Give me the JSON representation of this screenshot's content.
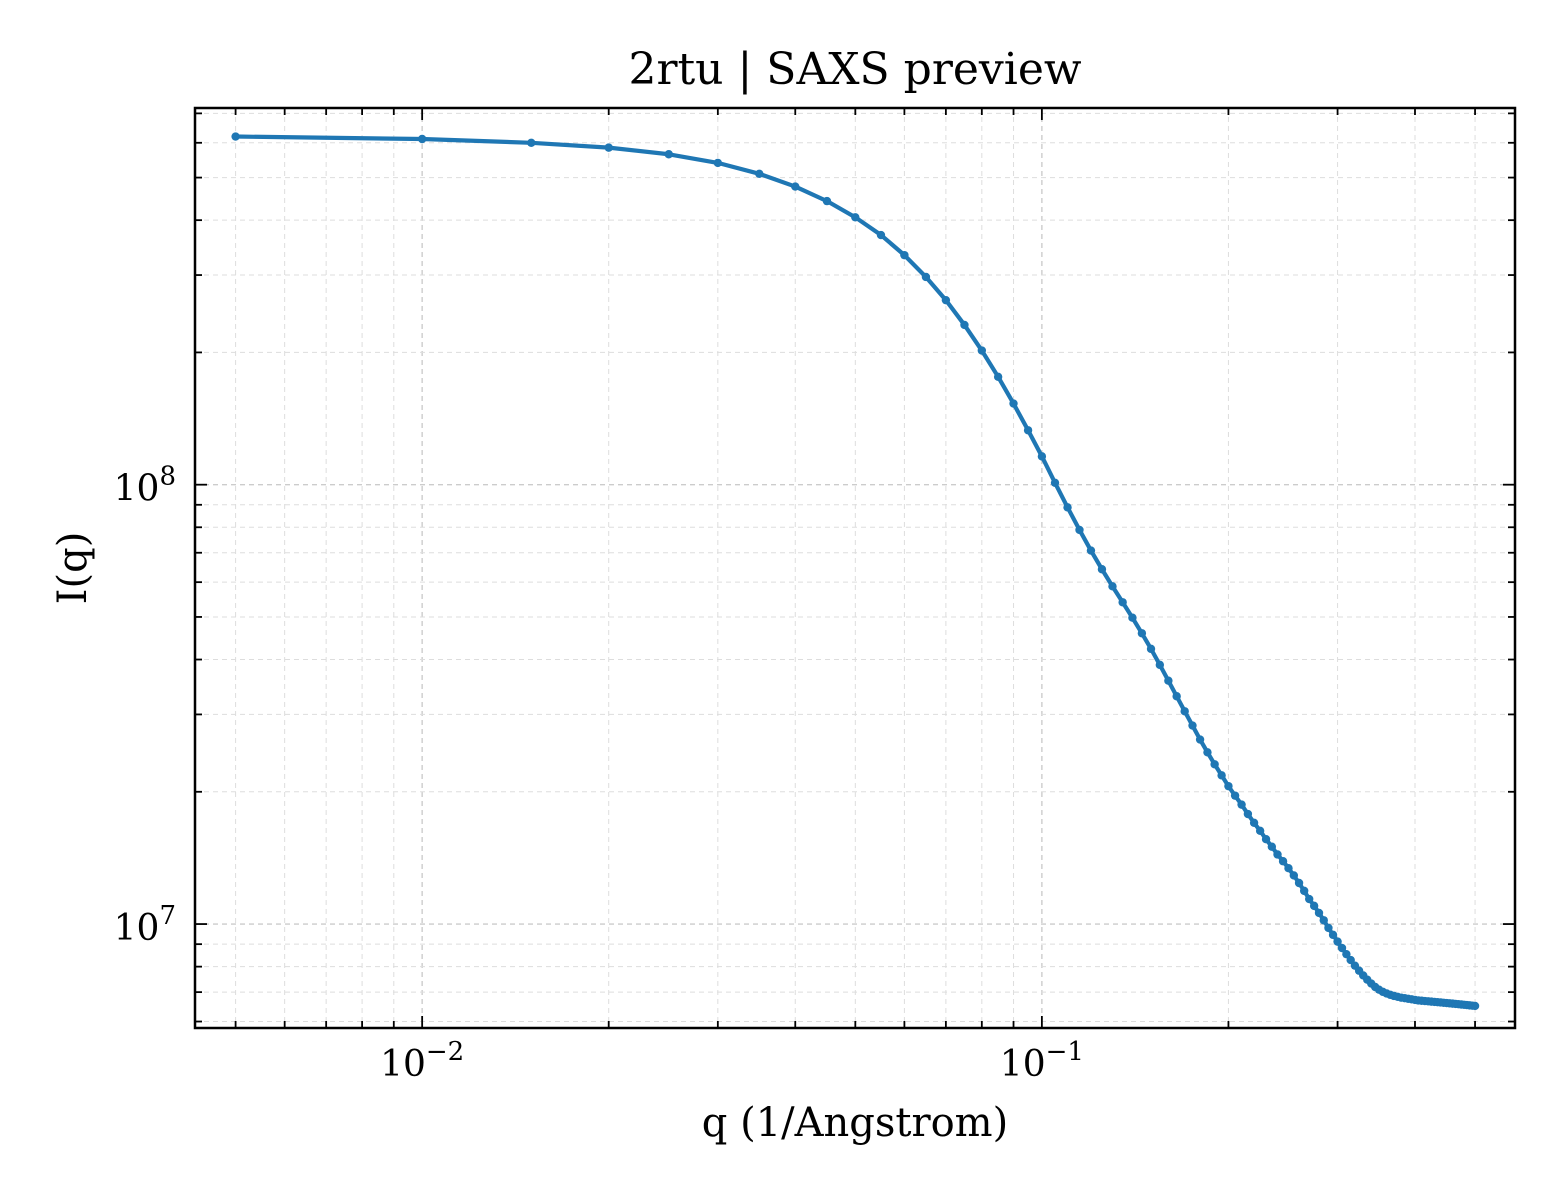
{
  "chart_data": {
    "type": "line",
    "title": "2rtu | SAXS preview",
    "xlabel": "q (1/Angstrom)",
    "ylabel": "I(q)",
    "xscale": "log",
    "yscale": "log",
    "xlim": [
      0.0043,
      0.58
    ],
    "ylim": [
      5800000,
      720000000
    ],
    "x_ticks": [
      {
        "value": 0.01,
        "base": "10",
        "exp": "−2"
      },
      {
        "value": 0.1,
        "base": "10",
        "exp": "−1"
      }
    ],
    "y_ticks": [
      {
        "value": 10000000,
        "base": "10",
        "exp": "7"
      },
      {
        "value": 100000000,
        "base": "10",
        "exp": "8"
      }
    ],
    "grid": true,
    "line_color": "#1f77b4",
    "series": [
      {
        "marker": "dot",
        "x": [
          0.005,
          0.01,
          0.015,
          0.02,
          0.025,
          0.03,
          0.035,
          0.04,
          0.045,
          0.05,
          0.055,
          0.06,
          0.065,
          0.07,
          0.075,
          0.08,
          0.085,
          0.09,
          0.095,
          0.1,
          0.105,
          0.11,
          0.115,
          0.12,
          0.125,
          0.13,
          0.135,
          0.14,
          0.145,
          0.15,
          0.155,
          0.16,
          0.165,
          0.17,
          0.175,
          0.18,
          0.185,
          0.19,
          0.195,
          0.2,
          0.205,
          0.21,
          0.215,
          0.22,
          0.225,
          0.23,
          0.235,
          0.24,
          0.245,
          0.25,
          0.255,
          0.26,
          0.265,
          0.27,
          0.275,
          0.28,
          0.285,
          0.29,
          0.295,
          0.3,
          0.305,
          0.31,
          0.315,
          0.32,
          0.325,
          0.33,
          0.335,
          0.34,
          0.345,
          0.35,
          0.355,
          0.36,
          0.365,
          0.37,
          0.375,
          0.38,
          0.385,
          0.39,
          0.395,
          0.4,
          0.405,
          0.41,
          0.415,
          0.42,
          0.425,
          0.43,
          0.435,
          0.44,
          0.445,
          0.45,
          0.455,
          0.46,
          0.465,
          0.47,
          0.475,
          0.48,
          0.485,
          0.49,
          0.495,
          0.5
        ],
        "y": [
          620000000,
          612000000,
          600000000,
          585000000,
          565000000,
          540000000,
          510000000,
          477000000,
          442000000,
          406000000,
          370000000,
          333000000,
          297000000,
          263000000,
          231000000,
          202000000,
          176000000,
          153000000,
          133000000,
          116000000,
          101000000,
          88800000,
          78900000,
          70800000,
          64200000,
          58700000,
          54000000,
          49800000,
          45900000,
          42300000,
          38900000,
          35800000,
          33000000,
          30500000,
          28300000,
          26300000,
          24600000,
          23100000,
          21800000,
          20600000,
          19600000,
          18700000,
          17800000,
          17000000,
          16300000,
          15600000,
          15000000,
          14400000,
          13900000,
          13400000,
          12900000,
          12400000,
          11900000,
          11400000,
          11000000,
          10600000,
          10200000,
          9800000,
          9450000,
          9120000,
          8820000,
          8540000,
          8280000,
          8040000,
          7830000,
          7640000,
          7470000,
          7320000,
          7190000,
          7090000,
          7010000,
          6950000,
          6900000,
          6860000,
          6830000,
          6800000,
          6780000,
          6760000,
          6740000,
          6720000,
          6700000,
          6690000,
          6680000,
          6670000,
          6660000,
          6650000,
          6640000,
          6630000,
          6620000,
          6610000,
          6600000,
          6590000,
          6580000,
          6570000,
          6560000,
          6550000,
          6540000,
          6530000,
          6520000,
          6510000
        ]
      }
    ]
  }
}
